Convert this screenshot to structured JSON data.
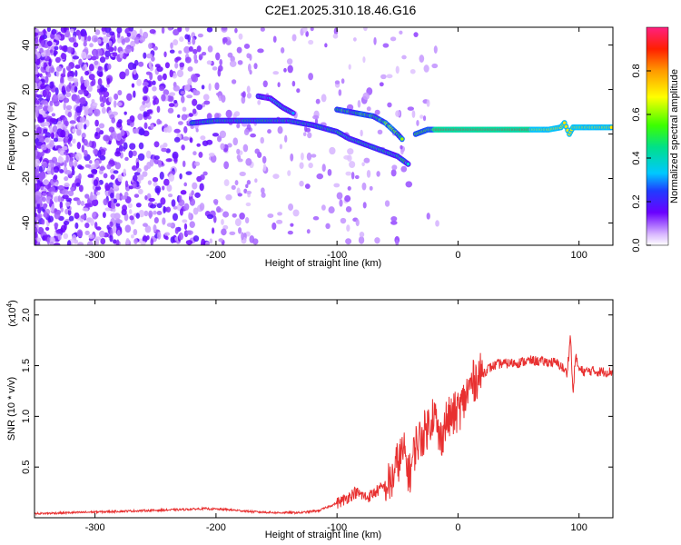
{
  "title": "C2E1.2025.310.18.46.G16",
  "chart_data": [
    {
      "type": "heatmap",
      "xlabel": "Height of straight line (km)",
      "ylabel": "Frequency (Hz)",
      "xlim": [
        -350,
        128
      ],
      "ylim": [
        -50,
        48
      ],
      "xticks": [
        "-300",
        "-200",
        "-100",
        "0",
        "100"
      ],
      "xtick_values": [
        -300,
        -200,
        -100,
        0,
        100
      ],
      "yticks": [
        "40",
        "20",
        "0",
        "-20",
        "-40"
      ],
      "ytick_values": [
        40,
        20,
        0,
        -20,
        -40
      ],
      "colorbar": {
        "label": "Normalized spectral amplitude",
        "range": [
          0,
          1
        ],
        "ticks": [
          "0.0",
          "0.2",
          "0.4",
          "0.6",
          "0.8"
        ],
        "tick_values": [
          0,
          0.2,
          0.4,
          0.6,
          0.8
        ]
      },
      "ridge": {
        "main_track": [
          [
            -220,
            5
          ],
          [
            -200,
            6
          ],
          [
            -180,
            6
          ],
          [
            -160,
            6
          ],
          [
            -140,
            6
          ],
          [
            -120,
            4
          ],
          [
            -100,
            1
          ],
          [
            -90,
            -2
          ],
          [
            -80,
            -4
          ],
          [
            -70,
            -6
          ],
          [
            -60,
            -8
          ],
          [
            -50,
            -10
          ],
          [
            -45,
            -12
          ],
          [
            -40,
            -14
          ]
        ],
        "upper_track": [
          [
            -165,
            17
          ],
          [
            -155,
            16
          ],
          [
            -145,
            12
          ],
          [
            -135,
            9
          ]
        ],
        "second_track": [
          [
            -100,
            11
          ],
          [
            -90,
            10
          ],
          [
            -80,
            9
          ],
          [
            -70,
            8
          ],
          [
            -60,
            5
          ],
          [
            -50,
            0
          ],
          [
            -45,
            -3
          ]
        ],
        "stable_tone": [
          [
            -35,
            0
          ],
          [
            -25,
            2
          ],
          [
            0,
            2
          ],
          [
            25,
            2
          ],
          [
            50,
            2
          ],
          [
            75,
            2
          ],
          [
            85,
            3
          ],
          [
            88,
            5
          ],
          [
            92,
            0
          ],
          [
            95,
            3
          ],
          [
            110,
            3
          ],
          [
            128,
            3
          ]
        ]
      }
    },
    {
      "type": "line",
      "xlabel": "Height of straight line (km)",
      "ylabel": "SNR (10 * v/v)",
      "y_multiplier": "(x10^4)",
      "xlim": [
        -350,
        128
      ],
      "ylim": [
        0,
        2.15
      ],
      "xticks": [
        "-300",
        "-200",
        "-100",
        "0",
        "100"
      ],
      "xtick_values": [
        -300,
        -200,
        -100,
        0,
        100
      ],
      "yticks": [
        "2.0",
        "1.5",
        "1.0",
        "0.5"
      ],
      "ytick_values": [
        2.0,
        1.5,
        1.0,
        0.5
      ],
      "color": "#e83030",
      "series": [
        {
          "x": [
            -350,
            -320,
            -290,
            -260,
            -230,
            -210,
            -190,
            -170,
            -150,
            -130,
            -115,
            -105,
            -95,
            -85,
            -75,
            -65,
            -55,
            -50,
            -45,
            -40,
            -35,
            -30,
            -25,
            -20,
            -15,
            -10,
            -5,
            0,
            5,
            10,
            15,
            20,
            25,
            30,
            35,
            40,
            50,
            60,
            70,
            80,
            85,
            90,
            93,
            95,
            97,
            100,
            105,
            110,
            115,
            120,
            128
          ],
          "values": [
            0.04,
            0.05,
            0.06,
            0.07,
            0.08,
            0.09,
            0.08,
            0.06,
            0.05,
            0.05,
            0.07,
            0.12,
            0.17,
            0.25,
            0.2,
            0.28,
            0.35,
            0.55,
            0.65,
            0.42,
            0.72,
            0.8,
            0.9,
            1.05,
            0.75,
            0.95,
            1.0,
            1.05,
            1.15,
            1.3,
            1.38,
            1.42,
            1.47,
            1.5,
            1.52,
            1.52,
            1.53,
            1.55,
            1.54,
            1.53,
            1.5,
            1.42,
            1.8,
            1.2,
            1.6,
            1.46,
            1.44,
            1.45,
            1.44,
            1.44,
            1.44
          ]
        }
      ]
    }
  ]
}
